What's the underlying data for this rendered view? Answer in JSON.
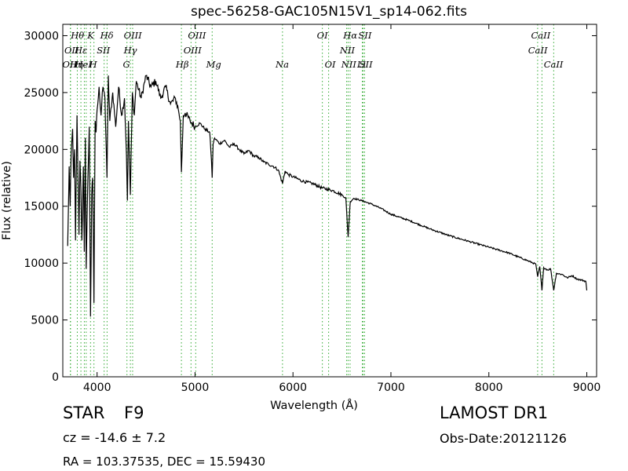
{
  "header": {
    "title": "spec-56258-GAC105N15V1_sp14-062.fits"
  },
  "info": {
    "class": "STAR",
    "subclass": "F9",
    "survey": "LAMOST DR1",
    "redshift": "cz = -14.6 ± 7.2",
    "obs_date": "Obs-Date:20121126",
    "coords": "RA = 103.37535, DEC = 15.59430"
  },
  "colors": {
    "spectrum": "#000000",
    "lines": "#33aa33",
    "frame": "#000000"
  },
  "chart_data": {
    "type": "line",
    "title": "spec-56258-GAC105N15V1_sp14-062.fits",
    "xlabel": "Wavelength (Å)",
    "ylabel": "Flux (relative)",
    "xlim": [
      3650,
      9100
    ],
    "ylim": [
      0,
      31000
    ],
    "xticks": [
      4000,
      5000,
      6000,
      7000,
      8000,
      9000
    ],
    "yticks": [
      0,
      5000,
      10000,
      15000,
      20000,
      25000,
      30000
    ],
    "grid": false,
    "series": [
      {
        "x": [
          3700,
          3715,
          3725,
          3735,
          3750,
          3760,
          3770,
          3780,
          3795,
          3800,
          3815,
          3825,
          3835,
          3845,
          3860,
          3870,
          3880,
          3889,
          3900,
          3920,
          3933,
          3945,
          3955,
          3968,
          3980,
          3990,
          4000,
          4020,
          4040,
          4060,
          4080,
          4101,
          4115,
          4130,
          4160,
          4190,
          4220,
          4250,
          4280,
          4300,
          4310,
          4320,
          4340,
          4360,
          4380,
          4400,
          4450,
          4500,
          4550,
          4600,
          4650,
          4700,
          4750,
          4800,
          4830,
          4850,
          4861,
          4880,
          4900,
          4950,
          5000,
          5050,
          5100,
          5150,
          5168,
          5175,
          5185,
          5200,
          5250,
          5300,
          5350,
          5400,
          5450,
          5500,
          5550,
          5600,
          5650,
          5700,
          5750,
          5800,
          5850,
          5893,
          5920,
          5950,
          6000,
          6100,
          6200,
          6300,
          6400,
          6500,
          6540,
          6563,
          6585,
          6620,
          6700,
          6800,
          6900,
          7000,
          7200,
          7400,
          7600,
          7800,
          8000,
          8200,
          8400,
          8480,
          8498,
          8520,
          8542,
          8560,
          8600,
          8630,
          8662,
          8690,
          8750,
          8800,
          8850,
          8900,
          8950,
          8990,
          9000
        ],
        "y": [
          11500,
          18500,
          15000,
          19500,
          21800,
          17500,
          20000,
          12000,
          23000,
          20500,
          12500,
          19000,
          16500,
          12000,
          18500,
          11000,
          21000,
          9500,
          15000,
          22000,
          5300,
          16000,
          17500,
          6500,
          22500,
          21500,
          23500,
          25500,
          23000,
          25500,
          24500,
          17500,
          26500,
          22500,
          25000,
          22000,
          25500,
          23000,
          24500,
          19500,
          15500,
          22500,
          16000,
          25000,
          23000,
          26000,
          24500,
          26500,
          25500,
          26000,
          24500,
          25500,
          24000,
          24500,
          23500,
          22500,
          18000,
          23000,
          23200,
          22500,
          22000,
          22300,
          21800,
          21500,
          19000,
          17500,
          20500,
          21000,
          20500,
          20800,
          20200,
          20500,
          20000,
          19600,
          19900,
          19400,
          19300,
          18900,
          18700,
          18500,
          18200,
          17000,
          18100,
          17800,
          17600,
          17200,
          17000,
          16600,
          16400,
          16000,
          15700,
          12300,
          15400,
          15700,
          15500,
          15200,
          14800,
          14300,
          13700,
          13000,
          12400,
          11900,
          11400,
          10900,
          10200,
          9900,
          8800,
          9700,
          7600,
          9600,
          9400,
          9500,
          7600,
          9100,
          9000,
          8700,
          8900,
          8600,
          8500,
          8400,
          7600
        ]
      }
    ],
    "line_markers": [
      {
        "label": "Hθ",
        "wl": 3798,
        "row": 0,
        "text_x": 3800
      },
      {
        "label": "K",
        "wl": 3933,
        "row": 0,
        "text_x": 3935
      },
      {
        "label": "Hδ",
        "wl": 4102,
        "row": 0,
        "text_x": 4100
      },
      {
        "label": "OIII",
        "wl": 4363,
        "row": 0,
        "text_x": 4365
      },
      {
        "label": "OIII",
        "wl": 5007,
        "row": 0,
        "text_x": 5020
      },
      {
        "label": "OI",
        "wl": 6300,
        "row": 0,
        "text_x": 6300
      },
      {
        "label": "Hα",
        "wl": 6563,
        "row": 0,
        "text_x": 6585
      },
      {
        "label": "SII",
        "wl": 6716,
        "row": 0,
        "text_x": 6735
      },
      {
        "label": "CaII",
        "wl": 8498,
        "row": 0,
        "text_x": 8530
      },
      {
        "label": "OII",
        "wl": 3727,
        "row": 1,
        "text_x": 3740
      },
      {
        "label": "Hε",
        "wl": 3889,
        "row": 1,
        "text_x": 3835
      },
      {
        "label": "SII",
        "wl": 4072,
        "row": 1,
        "text_x": 4065
      },
      {
        "label": "Hγ",
        "wl": 4340,
        "row": 1,
        "text_x": 4340
      },
      {
        "label": "OIII",
        "wl": 4959,
        "row": 1,
        "text_x": 4975
      },
      {
        "label": "NII",
        "wl": 6548,
        "row": 1,
        "text_x": 6555
      },
      {
        "label": "CaII",
        "wl": 8542,
        "row": 1,
        "text_x": 8500
      },
      {
        "label": "OII",
        "wl": 3729,
        "row": 2,
        "text_x": 3720
      },
      {
        "label": "Hη",
        "wl": 3835,
        "row": 2,
        "text_x": 3790
      },
      {
        "label": "HeI",
        "wl": 3870,
        "row": 2,
        "text_x": 3860
      },
      {
        "label": "H",
        "wl": 3968,
        "row": 2,
        "text_x": 3960
      },
      {
        "label": "G",
        "wl": 4305,
        "row": 2,
        "text_x": 4300
      },
      {
        "label": "Hβ",
        "wl": 4861,
        "row": 2,
        "text_x": 4870
      },
      {
        "label": "Mg",
        "wl": 5175,
        "row": 2,
        "text_x": 5190
      },
      {
        "label": "Na",
        "wl": 5893,
        "row": 2,
        "text_x": 5890
      },
      {
        "label": "OI",
        "wl": 6364,
        "row": 2,
        "text_x": 6380
      },
      {
        "label": "NII",
        "wl": 6583,
        "row": 2,
        "text_x": 6570
      },
      {
        "label": "Li",
        "wl": 6708,
        "row": 2,
        "text_x": 6700
      },
      {
        "label": "SII",
        "wl": 6731,
        "row": 2,
        "text_x": 6745
      },
      {
        "label": "CaII",
        "wl": 8662,
        "row": 2,
        "text_x": 8660
      }
    ]
  }
}
